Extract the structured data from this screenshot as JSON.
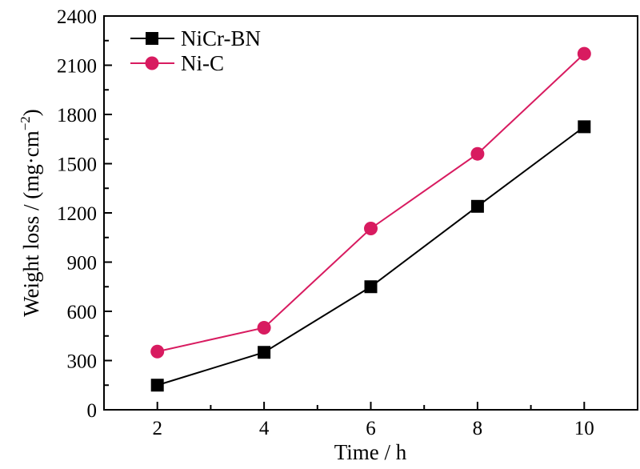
{
  "chart_data": {
    "type": "line",
    "title": "",
    "xlabel": "Time / h",
    "ylabel": "Weight loss / (mg·cm",
    "ylabel_sup": "−2",
    "ylabel_end": ")",
    "xlim": [
      1,
      11
    ],
    "ylim": [
      0,
      2400
    ],
    "xticks": [
      2,
      4,
      6,
      8,
      10
    ],
    "yticks": [
      0,
      300,
      600,
      900,
      1200,
      1500,
      1800,
      2100,
      2400
    ],
    "grid": false,
    "legend_position": "top-left",
    "x": [
      2,
      4,
      6,
      8,
      10
    ],
    "series": [
      {
        "name": "NiCr-BN",
        "marker": "square",
        "color": "#000000",
        "values": [
          150,
          350,
          750,
          1240,
          1725
        ]
      },
      {
        "name": "Ni-C",
        "marker": "circle",
        "color": "#d81b60",
        "values": [
          355,
          500,
          1105,
          1560,
          2170
        ]
      }
    ]
  }
}
